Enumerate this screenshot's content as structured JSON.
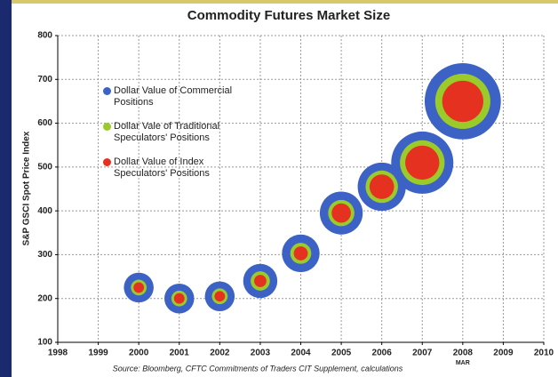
{
  "chart_data": {
    "type": "bubble",
    "title": "Commodity Futures Market Size",
    "y_label": "S&P GSCI Spot Price Index",
    "source": "Source: Bloomberg, CFTC Commitments of Traders CIT Supplement, calculations",
    "annotation": "MAR",
    "x": [
      2000,
      2001,
      2002,
      2003,
      2004,
      2005,
      2006,
      2007,
      2008
    ],
    "series": [
      {
        "name": "Dollar Value of Commercial Positions",
        "color": "#3b62c4",
        "values": [
          225,
          200,
          205,
          240,
          303,
          395,
          455,
          510,
          650
        ],
        "sizes": [
          34,
          34,
          34,
          39,
          43,
          49,
          55,
          71,
          87
        ]
      },
      {
        "name": "Dollar Vale of Traditional Speculators' Positions",
        "color": "#9acb2b",
        "values": [
          225,
          200,
          205,
          240,
          303,
          395,
          455,
          510,
          650
        ],
        "sizes": [
          18,
          18,
          18,
          22,
          24,
          30,
          37,
          51,
          63
        ]
      },
      {
        "name": "Dollar Value of Index Speculators' Positions",
        "color": "#e5311f",
        "values": [
          225,
          200,
          205,
          240,
          303,
          395,
          455,
          510,
          650
        ],
        "sizes": [
          12,
          12,
          12,
          14,
          16,
          22,
          28,
          39,
          47
        ]
      }
    ],
    "xlim": [
      1998,
      2010
    ],
    "xticks": [
      1998,
      1999,
      2000,
      2001,
      2002,
      2003,
      2004,
      2005,
      2006,
      2007,
      2008,
      2009,
      2010
    ],
    "ylim": [
      100,
      800
    ],
    "yticks": [
      100,
      200,
      300,
      400,
      500,
      600,
      700,
      800
    ],
    "grid": true,
    "legend": "upper left"
  }
}
